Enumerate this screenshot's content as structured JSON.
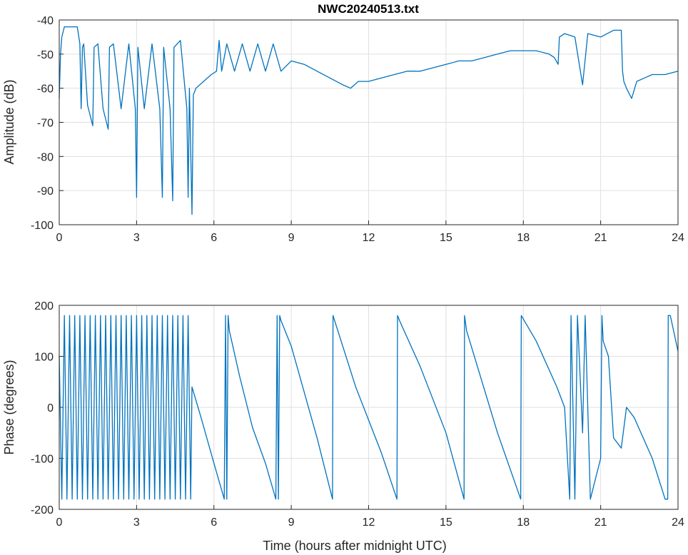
{
  "chart_data": [
    {
      "type": "line",
      "title": "NWC20240513.txt",
      "xlabel": "",
      "ylabel": "Amplitude (dB)",
      "xlim": [
        0,
        24
      ],
      "ylim": [
        -100,
        -40
      ],
      "xticks": [
        "0",
        "3",
        "6",
        "9",
        "12",
        "15",
        "18",
        "21",
        "24"
      ],
      "yticks": [
        "-40",
        "-50",
        "-60",
        "-70",
        "-80",
        "-90",
        "-100"
      ],
      "grid": true,
      "color": "#0072BD",
      "x": [
        0,
        0.05,
        0.1,
        0.2,
        0.4,
        0.7,
        0.8,
        0.85,
        0.9,
        0.95,
        1.1,
        1.3,
        1.35,
        1.5,
        1.7,
        1.9,
        1.95,
        2.1,
        2.4,
        2.7,
        2.95,
        3.0,
        3.05,
        3.3,
        3.6,
        3.9,
        4.0,
        4.05,
        4.3,
        4.4,
        4.45,
        4.7,
        4.95,
        5.0,
        5.05,
        5.15,
        5.2,
        5.3,
        5.6,
        5.9,
        6.1,
        6.2,
        6.3,
        6.5,
        6.8,
        7.1,
        7.4,
        7.7,
        8.0,
        8.3,
        8.6,
        9.0,
        9.5,
        10.0,
        10.5,
        11.0,
        11.3,
        11.6,
        12.0,
        12.5,
        13.0,
        13.5,
        14.0,
        14.5,
        15.0,
        15.5,
        16.0,
        16.5,
        17.0,
        17.5,
        18.0,
        18.5,
        19.0,
        19.2,
        19.35,
        19.4,
        19.6,
        20.0,
        20.3,
        20.5,
        21.0,
        21.5,
        21.8,
        21.85,
        21.9,
        22.0,
        22.2,
        22.4,
        22.7,
        23.0,
        23.5,
        24.0
      ],
      "values": [
        -63,
        -50,
        -45,
        -42,
        -42,
        -42,
        -47,
        -66,
        -48,
        -47,
        -65,
        -71,
        -48,
        -47,
        -66,
        -72,
        -48,
        -47,
        -66,
        -47,
        -66,
        -92,
        -48,
        -66,
        -47,
        -66,
        -92,
        -48,
        -66,
        -93,
        -48,
        -46,
        -66,
        -92,
        -60,
        -97,
        -62,
        -60,
        -58,
        -56,
        -55,
        -46,
        -55,
        -47,
        -55,
        -47,
        -55,
        -47,
        -55,
        -47,
        -55,
        -52,
        -53,
        -55,
        -57,
        -59,
        -60,
        -58,
        -58,
        -57,
        -56,
        -55,
        -55,
        -54,
        -53,
        -52,
        -52,
        -51,
        -50,
        -49,
        -49,
        -49,
        -50,
        -51,
        -53,
        -45,
        -44,
        -45,
        -59,
        -44,
        -45,
        -43,
        -43,
        -55,
        -58,
        -60,
        -63,
        -58,
        -57,
        -56,
        -56,
        -55
      ]
    },
    {
      "type": "line",
      "title": "",
      "xlabel": "Time (hours after midnight UTC)",
      "ylabel": "Phase (degrees)",
      "xlim": [
        0,
        24
      ],
      "ylim": [
        -200,
        200
      ],
      "xticks": [
        "0",
        "3",
        "6",
        "9",
        "12",
        "15",
        "18",
        "21",
        "24"
      ],
      "yticks": [
        "200",
        "100",
        "0",
        "-100",
        "-200"
      ],
      "grid": true,
      "color": "#0072BD",
      "x": [
        0,
        0.1,
        0.2,
        0.3,
        0.4,
        0.5,
        0.6,
        0.7,
        0.8,
        0.9,
        1.0,
        1.1,
        1.2,
        1.3,
        1.4,
        1.5,
        1.6,
        1.7,
        1.8,
        1.9,
        2.0,
        2.1,
        2.2,
        2.3,
        2.4,
        2.5,
        2.6,
        2.7,
        2.8,
        2.9,
        3.0,
        3.1,
        3.2,
        3.3,
        3.4,
        3.5,
        3.6,
        3.7,
        3.8,
        3.9,
        4.0,
        4.1,
        4.2,
        4.3,
        4.4,
        4.5,
        4.6,
        4.7,
        4.8,
        4.9,
        5.0,
        5.1,
        5.15,
        5.5,
        6.0,
        6.4,
        6.45,
        6.5,
        6.55,
        6.6,
        7.0,
        7.5,
        8.0,
        8.4,
        8.45,
        8.5,
        8.55,
        8.6,
        9.0,
        10.0,
        10.6,
        10.62,
        11.5,
        12.5,
        13.1,
        13.12,
        13.2,
        14.0,
        15.0,
        15.7,
        15.72,
        15.8,
        17.0,
        17.9,
        17.92,
        18.5,
        19.3,
        19.6,
        19.8,
        19.85,
        20.0,
        20.1,
        20.3,
        20.4,
        20.6,
        21.0,
        21.05,
        21.1,
        21.3,
        21.5,
        21.8,
        22.0,
        22.3,
        23.0,
        23.5,
        23.6,
        23.62,
        23.7,
        24.0
      ],
      "values": [
        100,
        -180,
        180,
        -180,
        180,
        -180,
        180,
        -180,
        180,
        -180,
        180,
        -180,
        180,
        -180,
        180,
        -180,
        180,
        -180,
        180,
        -180,
        180,
        -180,
        180,
        -180,
        180,
        -180,
        180,
        -180,
        180,
        -180,
        180,
        -180,
        180,
        -180,
        180,
        -180,
        180,
        -180,
        180,
        -180,
        180,
        -180,
        180,
        -180,
        180,
        -180,
        180,
        -180,
        180,
        -180,
        180,
        -180,
        40,
        -20,
        -110,
        -180,
        180,
        -180,
        180,
        150,
        60,
        -40,
        -110,
        -180,
        180,
        -180,
        180,
        170,
        120,
        -60,
        -180,
        180,
        40,
        -90,
        -180,
        180,
        170,
        80,
        -50,
        -180,
        180,
        150,
        -50,
        -180,
        180,
        130,
        40,
        0,
        -180,
        180,
        -180,
        180,
        -50,
        180,
        -180,
        -100,
        180,
        130,
        100,
        -60,
        -80,
        0,
        -20,
        -100,
        -180,
        -180,
        180,
        180,
        110
      ]
    }
  ]
}
